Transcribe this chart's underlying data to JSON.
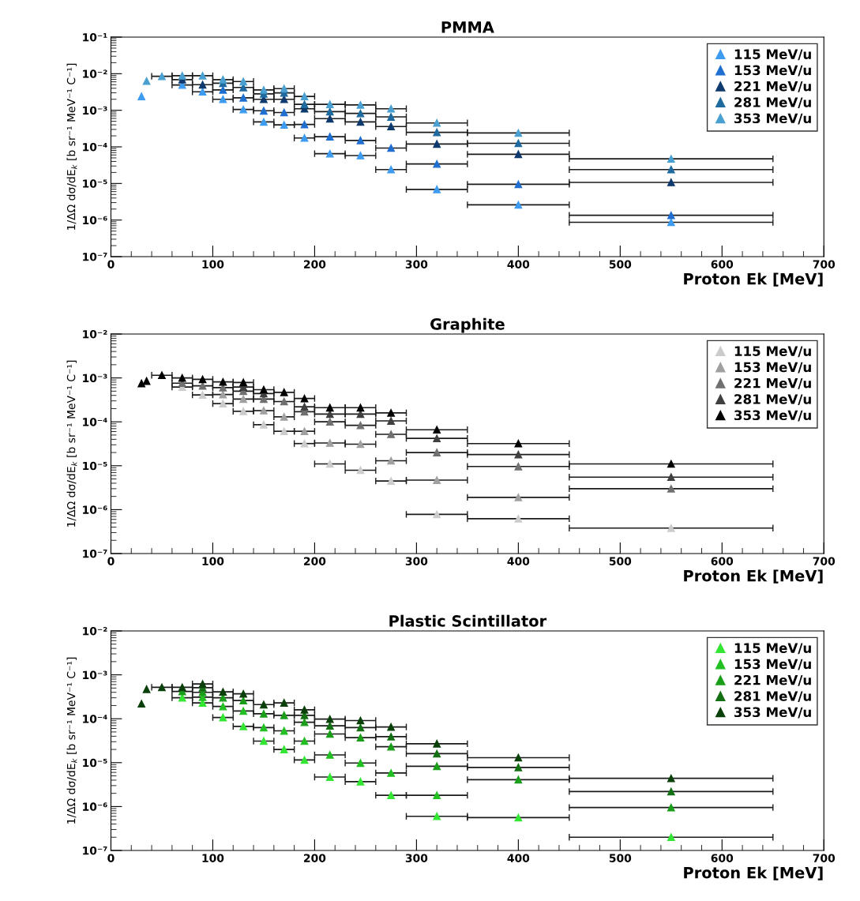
{
  "chart_data": [
    {
      "type": "scatter",
      "title": "PMMA",
      "xlabel": "Proton Ek [MeV]",
      "ylabel": "1/ΔΩ dσ/dE$_{k}$ [b sr⁻¹ MeV⁻¹ C⁻¹]",
      "log": "y",
      "marker": "triangle",
      "legend": "top right",
      "grid": false,
      "xlim": [
        0,
        700
      ],
      "xticks": [
        0,
        100,
        200,
        300,
        400,
        500,
        600,
        700
      ],
      "ylim": [
        1e-07,
        0.1
      ],
      "yticks": [
        {
          "value": 1e-07,
          "label": "10⁻⁷"
        },
        {
          "value": 1e-06,
          "label": "10⁻⁶"
        },
        {
          "value": 1e-05,
          "label": "10⁻⁵"
        },
        {
          "value": 0.0001,
          "label": "10⁻⁴"
        },
        {
          "value": 0.001,
          "label": "10⁻³"
        },
        {
          "value": 0.01,
          "label": "10⁻²"
        },
        {
          "value": 0.1,
          "label": "10⁻¹"
        }
      ],
      "x": [
        30,
        35,
        50,
        70,
        90,
        110,
        130,
        150,
        170,
        190,
        215,
        245,
        275,
        320,
        400,
        550
      ],
      "series": [
        {
          "name": "115 MeV/u",
          "color": "#3d9bf0",
          "values": [
            0.0024,
            null,
            null,
            0.0049,
            0.0032,
            0.002,
            0.00105,
            0.00048,
            0.0004,
            0.000175,
            6.5e-05,
            5.8e-05,
            2.4e-05,
            6.9e-06,
            2.6e-06,
            8.7e-07
          ],
          "xerrors": [
            null,
            null,
            null,
            10,
            10,
            10,
            10,
            10,
            10,
            10,
            15,
            15,
            15,
            30,
            50,
            100
          ]
        },
        {
          "name": "153 MeV/u",
          "color": "#1f6fd0",
          "values": [
            null,
            null,
            null,
            null,
            null,
            0.0036,
            0.0022,
            0.00097,
            0.00087,
            0.00041,
            0.00019,
            0.00015,
            9.3e-05,
            3.4e-05,
            9.5e-06,
            1.35e-06
          ],
          "xerrors": [
            null,
            null,
            null,
            null,
            null,
            10,
            10,
            10,
            10,
            10,
            15,
            15,
            15,
            30,
            50,
            100
          ]
        },
        {
          "name": "221 MeV/u",
          "color": "#0f3a6e",
          "values": [
            null,
            null,
            null,
            0.0069,
            0.005,
            null,
            null,
            0.002,
            0.002,
            0.0011,
            0.00059,
            0.00048,
            0.00036,
            0.00012,
            6.3e-05,
            1.07e-05
          ],
          "xerrors": [
            null,
            null,
            null,
            10,
            10,
            null,
            null,
            10,
            10,
            10,
            15,
            15,
            15,
            30,
            50,
            100
          ]
        },
        {
          "name": "281 MeV/u",
          "color": "#1f6a9e",
          "values": [
            null,
            null,
            null,
            null,
            null,
            0.0055,
            0.0042,
            0.0028,
            0.003,
            0.00145,
            0.00092,
            0.00082,
            0.00066,
            0.00025,
            0.000125,
            2.4e-05
          ],
          "xerrors": [
            null,
            null,
            null,
            null,
            null,
            10,
            10,
            10,
            10,
            10,
            15,
            15,
            15,
            30,
            50,
            100
          ]
        },
        {
          "name": "353 MeV/u",
          "color": "#4aa0d0",
          "values": [
            null,
            0.0063,
            0.0085,
            0.0088,
            0.0088,
            0.0069,
            0.0061,
            0.0036,
            0.0039,
            0.0024,
            0.00145,
            0.0014,
            0.0011,
            0.00045,
            0.00024,
            4.7e-05
          ],
          "xerrors": [
            null,
            null,
            10,
            10,
            10,
            10,
            10,
            10,
            10,
            10,
            15,
            15,
            15,
            30,
            50,
            100
          ]
        }
      ]
    },
    {
      "type": "scatter",
      "title": "Graphite",
      "xlabel": "Proton Ek [MeV]",
      "ylabel": "1/ΔΩ dσ/dE$_{k}$ [b sr⁻¹ MeV⁻¹ C⁻¹]",
      "log": "y",
      "marker": "triangle",
      "legend": "top right",
      "grid": false,
      "xlim": [
        0,
        700
      ],
      "xticks": [
        0,
        100,
        200,
        300,
        400,
        500,
        600,
        700
      ],
      "ylim": [
        1e-07,
        0.01
      ],
      "yticks": [
        {
          "value": 1e-07,
          "label": "10⁻⁷"
        },
        {
          "value": 1e-06,
          "label": "10⁻⁶"
        },
        {
          "value": 1e-05,
          "label": "10⁻⁵"
        },
        {
          "value": 0.0001,
          "label": "10⁻⁴"
        },
        {
          "value": 0.001,
          "label": "10⁻³"
        },
        {
          "value": 0.01,
          "label": "10⁻²"
        }
      ],
      "x": [
        30,
        35,
        50,
        70,
        90,
        110,
        130,
        150,
        170,
        190,
        215,
        245,
        275,
        320,
        400,
        550
      ],
      "series": [
        {
          "name": "115 MeV/u",
          "color": "#cccccc",
          "values": [
            null,
            null,
            null,
            0.00062,
            0.00041,
            0.00026,
            0.000174,
            8.6e-05,
            6.1e-05,
            3.2e-05,
            1.1e-05,
            7.9e-06,
            4.5e-06,
            7.8e-07,
            6.2e-07,
            3.8e-07
          ],
          "xerrors": [
            null,
            null,
            null,
            10,
            10,
            10,
            10,
            10,
            10,
            10,
            15,
            15,
            15,
            30,
            50,
            100
          ]
        },
        {
          "name": "153 MeV/u",
          "color": "#a0a0a0",
          "values": [
            null,
            null,
            null,
            null,
            null,
            0.00042,
            0.00033,
            0.00018,
            0.00013,
            6.1e-05,
            3.3e-05,
            3.1e-05,
            1.3e-05,
            4.7e-06,
            1.9e-06,
            null
          ],
          "xerrors": [
            null,
            null,
            null,
            null,
            null,
            10,
            10,
            10,
            10,
            10,
            15,
            15,
            15,
            30,
            50,
            null
          ]
        },
        {
          "name": "221 MeV/u",
          "color": "#707070",
          "values": [
            null,
            null,
            null,
            0.00076,
            0.00066,
            0.0006,
            0.0005,
            0.00033,
            0.00029,
            0.00017,
            0.0001,
            8.3e-05,
            5.2e-05,
            2e-05,
            9.6e-06,
            3e-06
          ],
          "xerrors": [
            null,
            null,
            null,
            10,
            10,
            10,
            10,
            10,
            10,
            10,
            15,
            15,
            15,
            30,
            50,
            100
          ]
        },
        {
          "name": "281 MeV/u",
          "color": "#404040",
          "values": [
            null,
            null,
            null,
            null,
            null,
            null,
            0.00062,
            0.00044,
            null,
            0.00022,
            0.00015,
            0.00015,
            0.000105,
            4.2e-05,
            1.8e-05,
            5.5e-06
          ],
          "xerrors": [
            null,
            null,
            null,
            null,
            null,
            null,
            10,
            10,
            null,
            10,
            15,
            15,
            15,
            30,
            50,
            100
          ]
        },
        {
          "name": "353 MeV/u",
          "color": "#000000",
          "values": [
            0.00075,
            0.00085,
            0.00115,
            0.001,
            0.00093,
            0.00081,
            0.00079,
            0.00054,
            0.00047,
            0.00034,
            0.00021,
            0.00021,
            0.00016,
            6.6e-05,
            3.2e-05,
            1.1e-05
          ],
          "xerrors": [
            null,
            null,
            10,
            10,
            10,
            10,
            10,
            10,
            10,
            10,
            15,
            15,
            15,
            30,
            50,
            100
          ]
        }
      ]
    },
    {
      "type": "scatter",
      "title": "Plastic Scintillator",
      "xlabel": "Proton Ek [MeV]",
      "ylabel": "1/ΔΩ dσ/dE$_{k}$ [b sr⁻¹ MeV⁻¹ C⁻¹]",
      "log": "y",
      "marker": "triangle",
      "legend": "top right",
      "grid": false,
      "xlim": [
        0,
        700
      ],
      "xticks": [
        0,
        100,
        200,
        300,
        400,
        500,
        600,
        700
      ],
      "ylim": [
        1e-07,
        0.01
      ],
      "yticks": [
        {
          "value": 1e-07,
          "label": "10⁻⁷"
        },
        {
          "value": 1e-06,
          "label": "10⁻⁶"
        },
        {
          "value": 1e-05,
          "label": "10⁻⁵"
        },
        {
          "value": 0.0001,
          "label": "10⁻⁴"
        },
        {
          "value": 0.001,
          "label": "10⁻³"
        },
        {
          "value": 0.01,
          "label": "10⁻²"
        }
      ],
      "x": [
        30,
        35,
        50,
        70,
        90,
        110,
        130,
        150,
        170,
        190,
        215,
        245,
        275,
        320,
        400,
        550
      ],
      "series": [
        {
          "name": "115 MeV/u",
          "color": "#33e633",
          "values": [
            null,
            null,
            null,
            0.0003,
            0.00023,
            0.000107,
            6.7e-05,
            3.1e-05,
            2e-05,
            1.15e-05,
            4.7e-06,
            3.7e-06,
            1.8e-06,
            6e-07,
            5.6e-07,
            2e-07
          ],
          "xerrors": [
            null,
            null,
            null,
            10,
            10,
            10,
            10,
            10,
            10,
            10,
            15,
            15,
            15,
            30,
            50,
            100
          ]
        },
        {
          "name": "153 MeV/u",
          "color": "#22c022",
          "values": [
            null,
            null,
            null,
            null,
            0.00031,
            0.00019,
            0.00015,
            6.3e-05,
            5.3e-05,
            3.1e-05,
            1.5e-05,
            9.8e-06,
            5.8e-06,
            1.8e-06,
            null,
            null
          ],
          "xerrors": [
            null,
            null,
            null,
            null,
            10,
            10,
            10,
            10,
            10,
            10,
            15,
            15,
            15,
            30,
            null,
            null
          ]
        },
        {
          "name": "221 MeV/u",
          "color": "#1a9e1a",
          "values": [
            null,
            null,
            null,
            0.00042,
            0.0004,
            0.0003,
            0.00026,
            0.00013,
            0.00012,
            8.3e-05,
            4.5e-05,
            3.7e-05,
            2.3e-05,
            8.3e-06,
            4.1e-06,
            9.5e-07
          ],
          "xerrors": [
            null,
            null,
            null,
            10,
            10,
            10,
            10,
            10,
            10,
            10,
            15,
            15,
            15,
            30,
            50,
            100
          ]
        },
        {
          "name": "281 MeV/u",
          "color": "#137013",
          "values": [
            null,
            null,
            null,
            null,
            0.00051,
            null,
            null,
            null,
            null,
            0.00012,
            6.9e-05,
            6.3e-05,
            3.9e-05,
            1.6e-05,
            7.8e-06,
            2.2e-06
          ],
          "xerrors": [
            null,
            null,
            null,
            null,
            10,
            null,
            null,
            null,
            null,
            10,
            15,
            15,
            15,
            30,
            50,
            100
          ]
        },
        {
          "name": "353 MeV/u",
          "color": "#0a400a",
          "values": [
            0.00022,
            0.00047,
            0.00052,
            0.00052,
            0.00062,
            0.00041,
            0.00037,
            0.00021,
            0.00023,
            0.00016,
            9.8e-05,
            9.1e-05,
            6.5e-05,
            2.7e-05,
            1.3e-05,
            4.4e-06
          ],
          "xerrors": [
            null,
            null,
            10,
            10,
            10,
            10,
            10,
            10,
            10,
            10,
            15,
            15,
            15,
            30,
            50,
            100
          ]
        }
      ]
    }
  ]
}
